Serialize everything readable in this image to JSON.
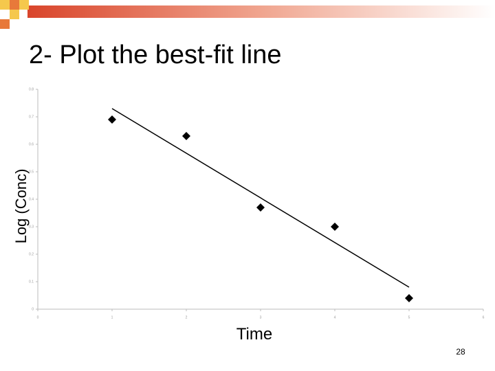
{
  "chart_data": {
    "type": "scatter",
    "title": "2- Plot the best-fit line",
    "xlabel": "Time",
    "ylabel": "Log (Conc)",
    "x": [
      1,
      2,
      3,
      4,
      5
    ],
    "values": [
      0.69,
      0.63,
      0.37,
      0.3,
      0.04
    ],
    "color": "#000000",
    "fit_line": {
      "x": [
        1,
        5
      ],
      "values": [
        0.73,
        0.08
      ],
      "color": "#000000"
    },
    "xlim": [
      0,
      6
    ],
    "xticks": [
      0,
      1,
      2,
      3,
      4,
      5,
      6
    ],
    "ylim": [
      0,
      0.8
    ],
    "yticks": [
      0,
      0.1,
      0.2,
      0.3,
      0.4,
      0.5,
      0.6,
      0.7,
      0.8
    ]
  },
  "slide_number": 28
}
